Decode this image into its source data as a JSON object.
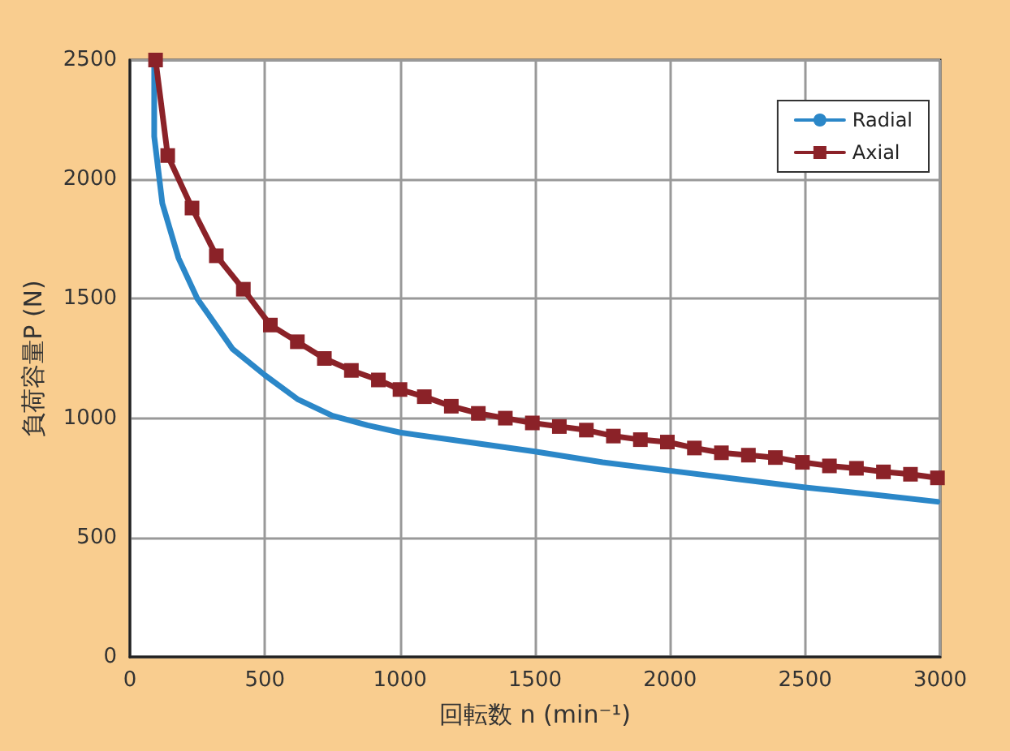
{
  "chart_data": {
    "type": "line",
    "xlabel": "回転数 n (min⁻¹)",
    "ylabel": "負荷容量P (N)",
    "xlim": [
      0,
      3000
    ],
    "xticks": [
      0,
      500,
      1000,
      1500,
      2000,
      2500,
      3000
    ],
    "ylim": [
      0,
      2500
    ],
    "yticks": [
      0,
      500,
      1000,
      1500,
      2000,
      2500
    ],
    "grid": true,
    "legend": "top right",
    "series": [
      {
        "name": "Radial",
        "color": "#2b87c8",
        "marker": "none",
        "x": [
          90,
          90,
          120,
          180,
          250,
          380,
          500,
          620,
          750,
          880,
          1000,
          1250,
          1500,
          1750,
          2000,
          2250,
          2500,
          2750,
          2990
        ],
        "values": [
          2500,
          2180,
          1900,
          1670,
          1500,
          1290,
          1180,
          1080,
          1010,
          970,
          940,
          900,
          860,
          815,
          780,
          745,
          710,
          680,
          650
        ]
      },
      {
        "name": "Axial",
        "color": "#8b2228",
        "marker": "square",
        "x": [
          95,
          140,
          230,
          320,
          420,
          520,
          620,
          720,
          820,
          920,
          1000,
          1090,
          1190,
          1290,
          1390,
          1490,
          1590,
          1690,
          1790,
          1890,
          1990,
          2090,
          2190,
          2290,
          2390,
          2490,
          2590,
          2690,
          2790,
          2890,
          2990
        ],
        "values": [
          2500,
          2100,
          1880,
          1680,
          1540,
          1390,
          1320,
          1250,
          1200,
          1160,
          1120,
          1090,
          1050,
          1020,
          1000,
          980,
          965,
          950,
          925,
          910,
          900,
          875,
          855,
          845,
          835,
          815,
          800,
          790,
          775,
          765,
          750
        ]
      }
    ]
  }
}
